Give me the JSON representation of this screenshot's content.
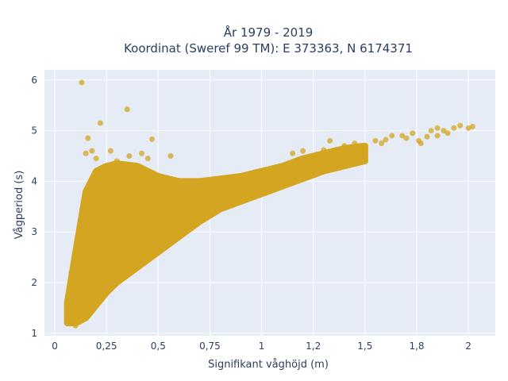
{
  "chart_data": {
    "type": "scatter",
    "title_line1": "År 1979 - 2019",
    "title_line2": "Koordinat (Sweref 99 TM): E 373363, N 6174371",
    "xlabel": "Signifikant våghöjd (m)",
    "ylabel": "Vågperiod (s)",
    "xlim": [
      -0.05,
      2.13
    ],
    "ylim": [
      0.95,
      6.2
    ],
    "x_ticks": [
      0,
      0.25,
      0.5,
      0.75,
      1,
      1.25,
      1.5,
      1.75,
      2
    ],
    "x_tick_labels": [
      "0",
      "0,25",
      "0,5",
      "0,75",
      "1",
      "1,2",
      "1,5",
      "1,8",
      "2"
    ],
    "y_ticks": [
      1,
      2,
      3,
      4,
      5,
      6
    ],
    "y_tick_labels": [
      "1",
      "2",
      "3",
      "4",
      "5",
      "6"
    ],
    "grid": true,
    "background_color": "#e5ecf6",
    "marker_color": "#d4a520",
    "dense_envelope": {
      "x": [
        0.06,
        0.1,
        0.15,
        0.2,
        0.25,
        0.3,
        0.4,
        0.5,
        0.6,
        0.7,
        0.8,
        0.9,
        1.0,
        1.1,
        1.2,
        1.3,
        1.4,
        1.5
      ],
      "y_low": [
        1.2,
        1.2,
        1.3,
        1.55,
        1.8,
        2.0,
        2.3,
        2.6,
        2.9,
        3.2,
        3.45,
        3.6,
        3.75,
        3.9,
        4.05,
        4.2,
        4.3,
        4.4
      ],
      "y_high": [
        1.6,
        2.6,
        3.8,
        4.2,
        4.3,
        4.35,
        4.3,
        4.1,
        4.0,
        4.0,
        4.05,
        4.1,
        4.2,
        4.3,
        4.45,
        4.55,
        4.65,
        4.7
      ]
    },
    "points": [
      {
        "x": 0.13,
        "y": 5.95
      },
      {
        "x": 0.35,
        "y": 5.42
      },
      {
        "x": 0.22,
        "y": 5.15
      },
      {
        "x": 0.47,
        "y": 4.83
      },
      {
        "x": 0.16,
        "y": 4.85
      },
      {
        "x": 0.15,
        "y": 4.55
      },
      {
        "x": 0.2,
        "y": 4.45
      },
      {
        "x": 0.3,
        "y": 4.4
      },
      {
        "x": 0.42,
        "y": 4.55
      },
      {
        "x": 0.56,
        "y": 4.5
      },
      {
        "x": 0.18,
        "y": 4.6
      },
      {
        "x": 0.27,
        "y": 4.6
      },
      {
        "x": 0.36,
        "y": 4.5
      },
      {
        "x": 0.45,
        "y": 4.45
      },
      {
        "x": 0.08,
        "y": 2.2
      },
      {
        "x": 0.07,
        "y": 1.5
      },
      {
        "x": 0.1,
        "y": 1.15
      },
      {
        "x": 0.12,
        "y": 1.22
      },
      {
        "x": 1.15,
        "y": 4.55
      },
      {
        "x": 1.2,
        "y": 4.6
      },
      {
        "x": 1.3,
        "y": 4.62
      },
      {
        "x": 1.33,
        "y": 4.8
      },
      {
        "x": 1.4,
        "y": 4.7
      },
      {
        "x": 1.45,
        "y": 4.75
      },
      {
        "x": 1.5,
        "y": 4.7
      },
      {
        "x": 1.55,
        "y": 4.8
      },
      {
        "x": 1.6,
        "y": 4.82
      },
      {
        "x": 1.63,
        "y": 4.9
      },
      {
        "x": 1.7,
        "y": 4.85
      },
      {
        "x": 1.73,
        "y": 4.95
      },
      {
        "x": 1.76,
        "y": 4.8
      },
      {
        "x": 1.8,
        "y": 4.88
      },
      {
        "x": 1.82,
        "y": 5.0
      },
      {
        "x": 1.85,
        "y": 5.05
      },
      {
        "x": 1.88,
        "y": 5.0
      },
      {
        "x": 1.9,
        "y": 4.95
      },
      {
        "x": 1.93,
        "y": 5.05
      },
      {
        "x": 1.96,
        "y": 5.1
      },
      {
        "x": 2.0,
        "y": 5.05
      },
      {
        "x": 2.02,
        "y": 5.08
      },
      {
        "x": 1.77,
        "y": 4.75
      },
      {
        "x": 1.85,
        "y": 4.9
      },
      {
        "x": 1.68,
        "y": 4.9
      },
      {
        "x": 1.58,
        "y": 4.75
      }
    ]
  }
}
